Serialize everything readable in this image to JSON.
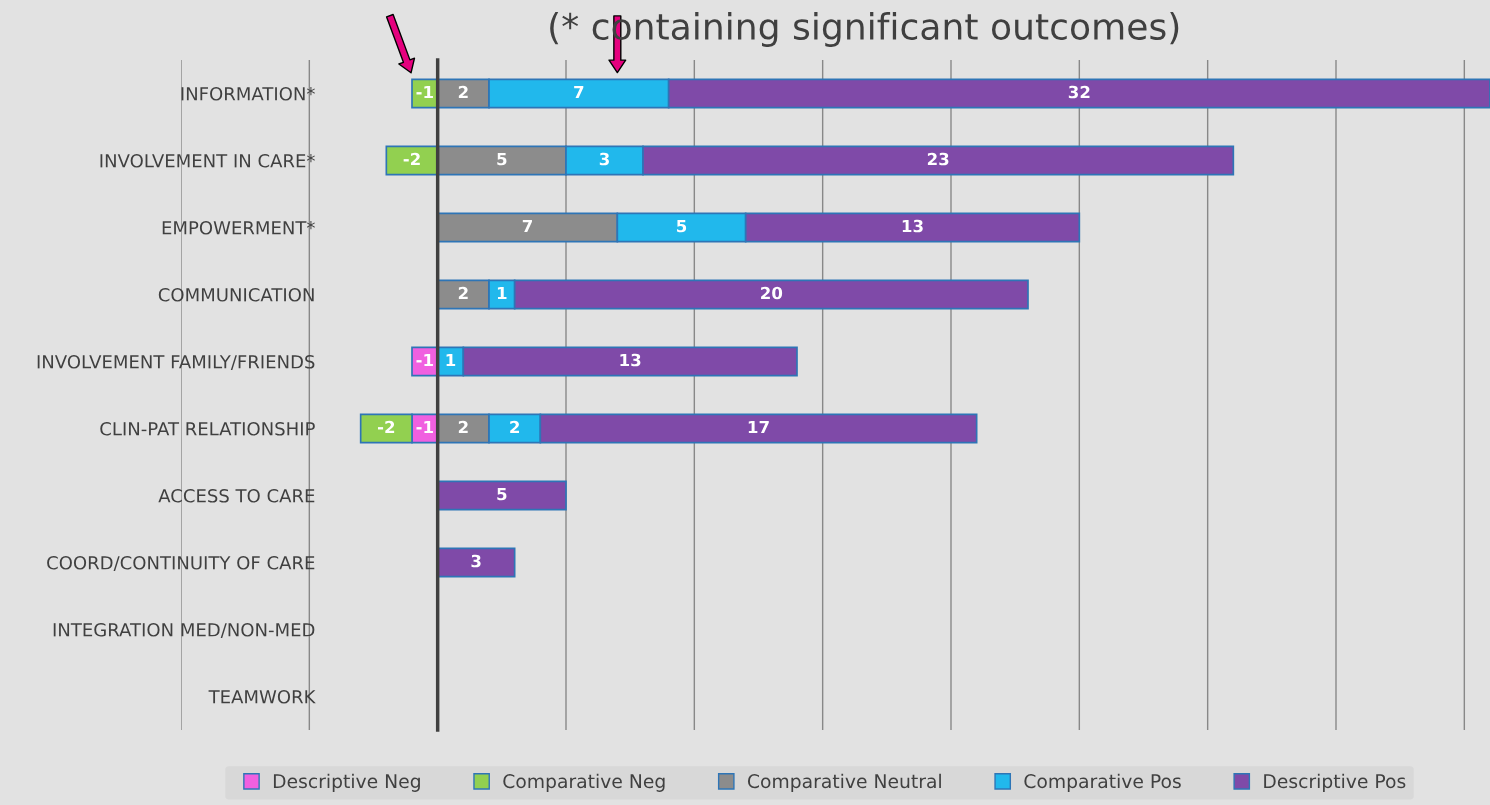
{
  "chart_data": {
    "type": "bar",
    "orientation": "horizontal",
    "stacked": true,
    "title": "(* containing significant outcomes)",
    "categories": [
      "INFORMATION*",
      "INVOLVEMENT IN CARE*",
      "EMPOWERMENT*",
      "COMMUNICATION",
      "INVOLVEMENT FAMILY/FRIENDS",
      "CLIN-PAT RELATIONSHIP",
      "ACCESS TO CARE",
      "COORD/CONTINUITY OF CARE",
      "INTEGRATION MED/NON-MED",
      "TEAMWORK"
    ],
    "series": [
      {
        "name": "Descriptive Neg",
        "color": "#f060e0",
        "values": [
          null,
          null,
          null,
          null,
          -1,
          -1,
          null,
          null,
          null,
          null
        ]
      },
      {
        "name": "Comparative Neg",
        "color": "#92d050",
        "values": [
          -1,
          -2,
          null,
          null,
          null,
          -2,
          null,
          null,
          null,
          null
        ]
      },
      {
        "name": "Comparative Neutral",
        "color": "#8c8c8c",
        "values": [
          2,
          5,
          7,
          2,
          null,
          2,
          null,
          null,
          null,
          null
        ]
      },
      {
        "name": "Comparative Pos",
        "color": "#21b8ec",
        "values": [
          7,
          3,
          5,
          1,
          1,
          2,
          null,
          null,
          null,
          null
        ]
      },
      {
        "name": "Descriptive Pos",
        "color": "#7f4aa8",
        "values": [
          32,
          23,
          13,
          20,
          13,
          17,
          5,
          3,
          null,
          null
        ]
      }
    ],
    "xlim": [
      -10,
      41
    ],
    "xticks": [
      {
        "value": -10,
        "label": null
      },
      {
        "value": -5,
        "label": null
      },
      {
        "value": 0,
        "label": null
      },
      {
        "value": 5,
        "label": null
      },
      {
        "value": 10,
        "label": null
      },
      {
        "value": 15,
        "label": null
      },
      {
        "value": 20,
        "label": null
      },
      {
        "value": 25,
        "label": null
      },
      {
        "value": 30,
        "label": null
      },
      {
        "value": 35,
        "label": null
      },
      {
        "value": 40,
        "label": null
      }
    ],
    "tick_labels": "y",
    "grid": "x",
    "legend": "bottom",
    "data_labels": true
  }
}
